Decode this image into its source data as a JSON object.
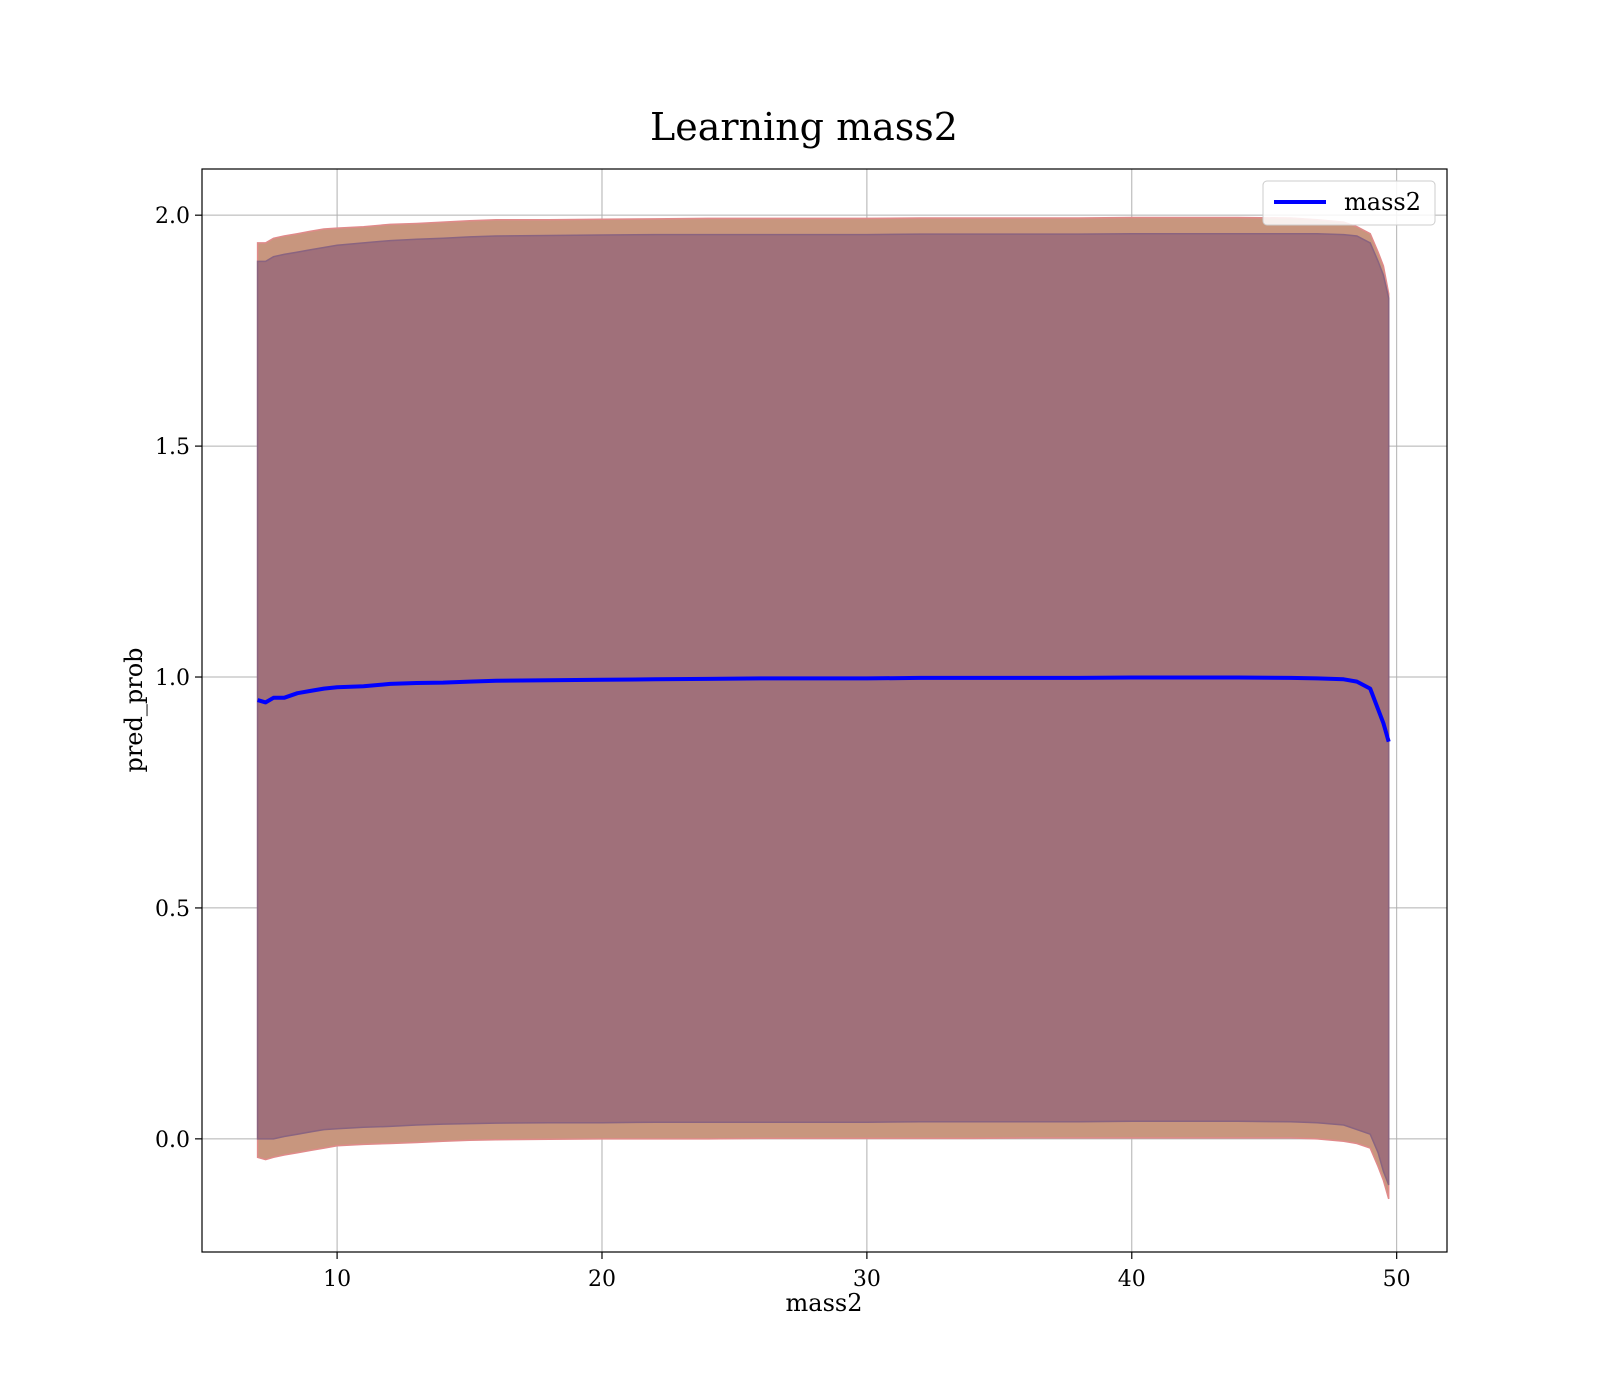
{
  "chart_data": {
    "type": "line",
    "title": "Learning mass2",
    "xlabel": "mass2",
    "ylabel": "pred_prob",
    "xlim": [
      4.9,
      51.9
    ],
    "ylim": [
      -0.245,
      2.1
    ],
    "xticks": [
      10,
      20,
      30,
      40,
      50
    ],
    "yticks": [
      0.0,
      0.5,
      1.0,
      1.5,
      2.0
    ],
    "xtick_labels": [
      "10",
      "20",
      "30",
      "40",
      "50"
    ],
    "ytick_labels": [
      "0.0",
      "0.5",
      "1.0",
      "1.5",
      "2.0"
    ],
    "grid": true,
    "legend_position": "top-right",
    "series": [
      {
        "name": "mass2",
        "color": "#0000ff",
        "x": [
          7.0,
          7.3,
          7.6,
          8.0,
          8.5,
          9.0,
          9.5,
          10.0,
          11.0,
          12.0,
          13.0,
          14.0,
          15.0,
          16.0,
          18.0,
          20.0,
          22.0,
          24.0,
          26.0,
          28.0,
          30.0,
          32.0,
          34.0,
          36.0,
          38.0,
          40.0,
          42.0,
          44.0,
          46.0,
          47.0,
          48.0,
          48.5,
          49.0,
          49.3,
          49.5,
          49.7
        ],
        "y": [
          0.95,
          0.945,
          0.955,
          0.955,
          0.965,
          0.97,
          0.975,
          0.978,
          0.98,
          0.985,
          0.987,
          0.988,
          0.99,
          0.992,
          0.993,
          0.994,
          0.995,
          0.996,
          0.997,
          0.997,
          0.997,
          0.998,
          0.998,
          0.998,
          0.998,
          0.999,
          0.999,
          0.999,
          0.998,
          0.997,
          0.995,
          0.99,
          0.975,
          0.93,
          0.9,
          0.86
        ]
      }
    ],
    "bands": [
      {
        "color": "#c8967e",
        "upper": [
          1.94,
          1.94,
          1.95,
          1.955,
          1.96,
          1.965,
          1.97,
          1.972,
          1.975,
          1.98,
          1.982,
          1.985,
          1.988,
          1.99,
          1.99,
          1.991,
          1.992,
          1.993,
          1.993,
          1.993,
          1.993,
          1.994,
          1.994,
          1.994,
          1.994,
          1.995,
          1.995,
          1.995,
          1.994,
          1.99,
          1.985,
          1.975,
          1.96,
          1.92,
          1.89,
          1.83
        ],
        "lower": [
          -0.04,
          -0.045,
          -0.04,
          -0.035,
          -0.03,
          -0.025,
          -0.02,
          -0.015,
          -0.012,
          -0.01,
          -0.008,
          -0.005,
          -0.003,
          -0.002,
          -0.001,
          0.0,
          0.0,
          0.0,
          0.001,
          0.001,
          0.001,
          0.001,
          0.001,
          0.002,
          0.002,
          0.002,
          0.002,
          0.002,
          0.002,
          0.0,
          -0.005,
          -0.01,
          -0.02,
          -0.06,
          -0.09,
          -0.13
        ]
      },
      {
        "color": "#a0707a",
        "upper": [
          1.9,
          1.9,
          1.91,
          1.915,
          1.92,
          1.925,
          1.93,
          1.935,
          1.94,
          1.945,
          1.948,
          1.95,
          1.953,
          1.955,
          1.956,
          1.957,
          1.958,
          1.958,
          1.958,
          1.958,
          1.958,
          1.959,
          1.959,
          1.959,
          1.959,
          1.96,
          1.96,
          1.96,
          1.96,
          1.96,
          1.958,
          1.955,
          1.94,
          1.9,
          1.87,
          1.82
        ],
        "lower": [
          0.0,
          0.0,
          0.0,
          0.005,
          0.01,
          0.015,
          0.02,
          0.022,
          0.025,
          0.027,
          0.03,
          0.032,
          0.033,
          0.034,
          0.035,
          0.035,
          0.036,
          0.036,
          0.036,
          0.036,
          0.036,
          0.037,
          0.037,
          0.037,
          0.037,
          0.038,
          0.038,
          0.038,
          0.037,
          0.035,
          0.03,
          0.02,
          0.01,
          -0.03,
          -0.07,
          -0.1
        ]
      }
    ]
  }
}
